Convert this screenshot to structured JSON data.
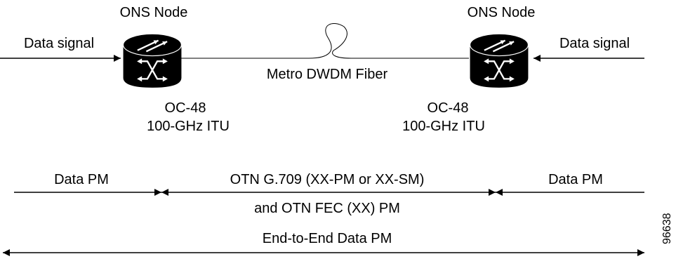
{
  "diagram": {
    "left_node": {
      "title": "ONS Node",
      "input_label": "Data signal",
      "rate": "OC-48",
      "itu": "100-GHz ITU"
    },
    "right_node": {
      "title": "ONS Node",
      "input_label": "Data signal",
      "rate": "OC-48",
      "itu": "100-GHz ITU"
    },
    "fiber_label": "Metro DWDM Fiber",
    "segments": {
      "left": "Data PM",
      "middle_line1": "OTN G.709 (XX-PM or XX-SM)",
      "middle_line2": "and OTN FEC (XX) PM",
      "right": "Data PM"
    },
    "end_to_end": "End-to-End Data PM",
    "figure_id": "96638"
  },
  "colors": {
    "line": "#000000",
    "node_fill": "#000000",
    "node_symbol": "#ffffff",
    "background": "#ffffff"
  },
  "icons": [
    "router-node-icon",
    "fiber-loop-icon"
  ]
}
